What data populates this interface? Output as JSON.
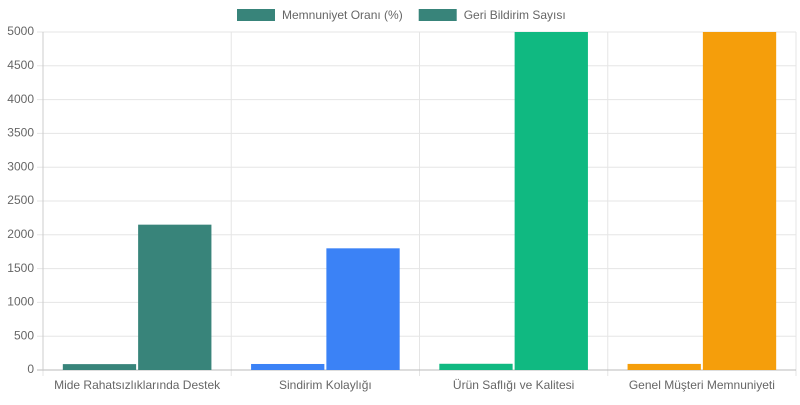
{
  "chart_data": {
    "type": "bar",
    "categories": [
      "Mide Rahatsızlıklarında Destek",
      "Sindirim Kolaylığı",
      "Ürün Saflığı ve Kalitesi",
      "Genel Müşteri Memnuniyeti"
    ],
    "series": [
      {
        "name": "Memnuniyet Oranı (%)",
        "colors": [
          "#38847a",
          "#3b82f6",
          "#10b981",
          "#f59e0b"
        ],
        "values": [
          87,
          89,
          92,
          90
        ]
      },
      {
        "name": "Geri Bildirim Sayısı",
        "colors": [
          "#38847a",
          "#3b82f6",
          "#10b981",
          "#f59e0b"
        ],
        "values": [
          2150,
          1800,
          5000,
          5000
        ]
      }
    ],
    "ylim": [
      0,
      5000
    ],
    "yticks": [
      0,
      500,
      1000,
      1500,
      2000,
      2500,
      3000,
      3500,
      4000,
      4500,
      5000
    ],
    "grid": true,
    "legend": "top"
  }
}
